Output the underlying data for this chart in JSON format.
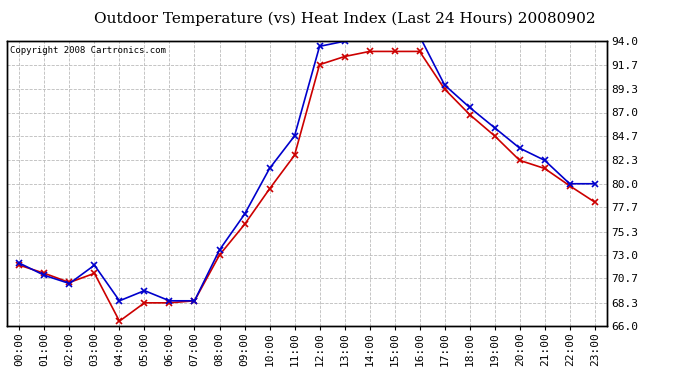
{
  "title": "Outdoor Temperature (vs) Heat Index (Last 24 Hours) 20080902",
  "copyright": "Copyright 2008 Cartronics.com",
  "x_labels": [
    "00:00",
    "01:00",
    "02:00",
    "03:00",
    "04:00",
    "05:00",
    "06:00",
    "07:00",
    "08:00",
    "09:00",
    "10:00",
    "11:00",
    "12:00",
    "13:00",
    "14:00",
    "15:00",
    "16:00",
    "17:00",
    "18:00",
    "19:00",
    "20:00",
    "21:00",
    "22:00",
    "23:00"
  ],
  "temp_data": [
    72.0,
    71.2,
    70.3,
    71.2,
    66.5,
    68.3,
    68.3,
    68.5,
    73.0,
    76.0,
    79.5,
    82.8,
    91.7,
    92.5,
    93.0,
    93.0,
    93.0,
    89.3,
    86.8,
    84.7,
    82.3,
    81.5,
    79.8,
    78.2
  ],
  "heat_data": [
    72.2,
    71.0,
    70.2,
    72.0,
    68.5,
    69.5,
    68.5,
    68.5,
    73.5,
    77.0,
    81.5,
    84.7,
    93.5,
    94.0,
    94.5,
    94.5,
    94.5,
    89.7,
    87.5,
    85.5,
    83.5,
    82.3,
    80.0,
    80.0
  ],
  "temp_color": "#cc0000",
  "heat_color": "#0000cc",
  "ylim_min": 66.0,
  "ylim_max": 94.0,
  "ytick_values": [
    66.0,
    68.3,
    70.7,
    73.0,
    75.3,
    77.7,
    80.0,
    82.3,
    84.7,
    87.0,
    89.3,
    91.7,
    94.0
  ],
  "background_color": "#ffffff",
  "grid_color": "#bbbbbb",
  "title_fontsize": 11,
  "tick_fontsize": 8,
  "copyright_fontsize": 6.5
}
